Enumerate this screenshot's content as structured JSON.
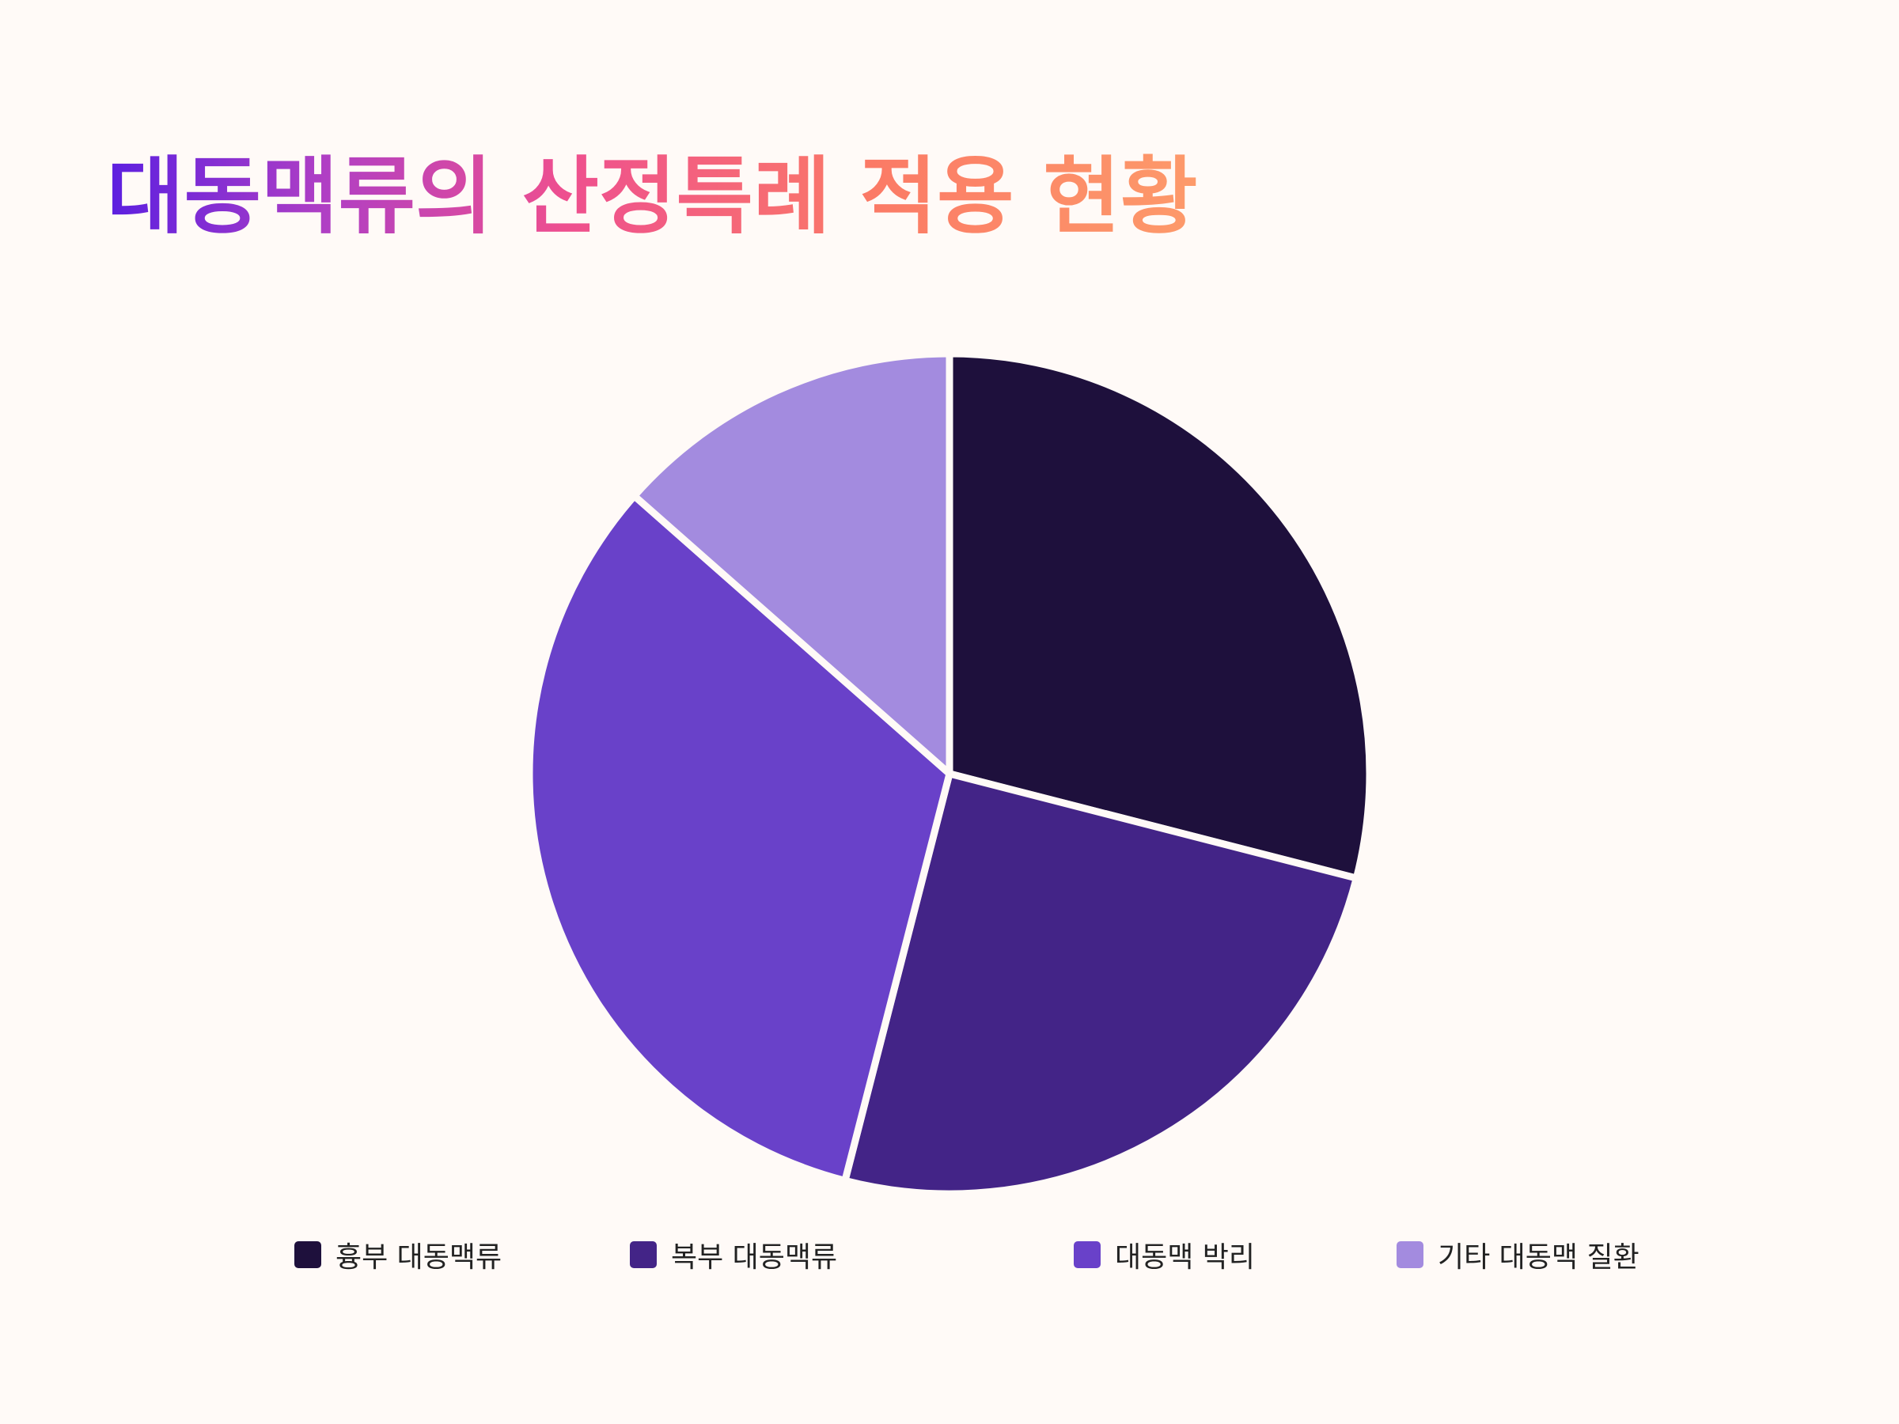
{
  "chart_data": {
    "type": "pie",
    "title": "대동맥류의 산정특례 적용 현황",
    "categories": [
      "흉부 대동맥류",
      "복부 대동맥류",
      "대동맥 박리",
      "기타 대동맥 질환"
    ],
    "values": [
      29.0,
      25.0,
      32.5,
      13.5
    ],
    "colors": [
      "#1e103c",
      "#432487",
      "#6941c9",
      "#a38bdf"
    ],
    "legend_position": "bottom",
    "start_angle_deg": 0,
    "direction": "clockwise"
  }
}
